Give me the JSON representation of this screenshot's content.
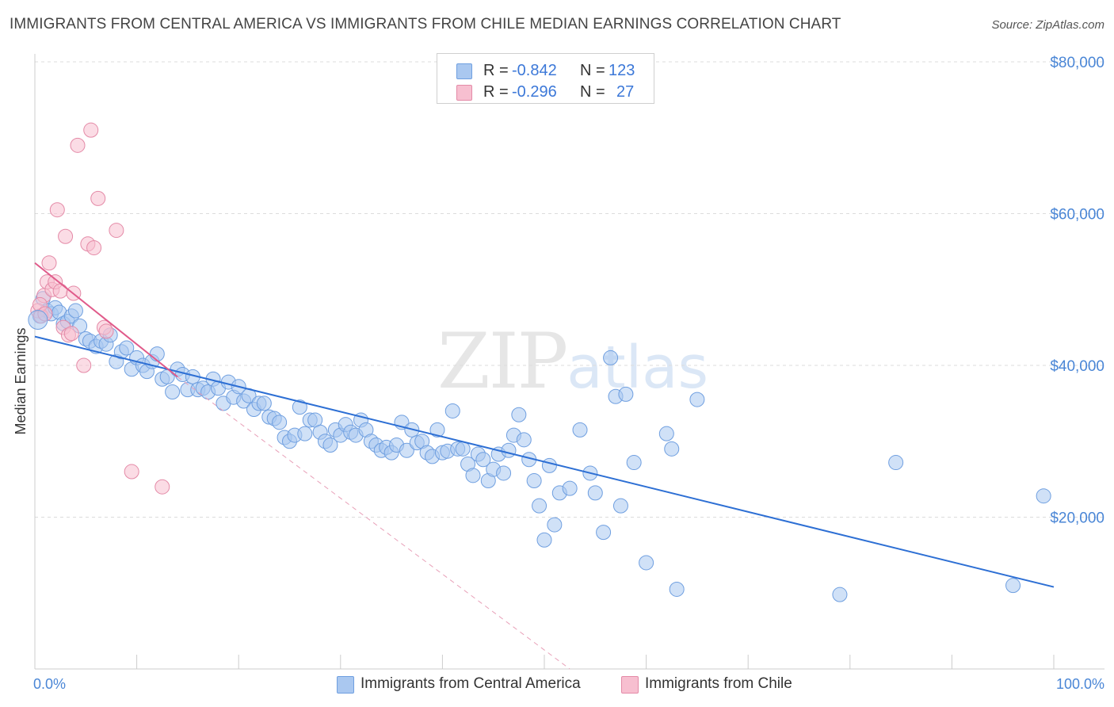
{
  "title": "IMMIGRANTS FROM CENTRAL AMERICA VS IMMIGRANTS FROM CHILE MEDIAN EARNINGS CORRELATION CHART",
  "source": "Source: ZipAtlas.com",
  "watermark": {
    "zip": "ZIP",
    "atlas": "atlas"
  },
  "legend_top": [
    {
      "r_label": "R =",
      "r_value": "-0.842",
      "n_label": "N =",
      "n_value": "123",
      "color": "#aac8f0",
      "border": "#6f9fe0"
    },
    {
      "r_label": "R =",
      "r_value": "-0.296",
      "n_label": "N =",
      "n_value": "27",
      "color": "#f7bfd0",
      "border": "#e48aa7"
    }
  ],
  "chart_data": {
    "type": "scatter",
    "title": "IMMIGRANTS FROM CENTRAL AMERICA VS IMMIGRANTS FROM CHILE MEDIAN EARNINGS CORRELATION CHART",
    "xlabel": "",
    "ylabel": "Median Earnings",
    "xlim": [
      0,
      100
    ],
    "ylim": [
      0,
      80000
    ],
    "x_tick_labels": [
      "0.0%",
      "100.0%"
    ],
    "y_ticks": [
      20000,
      40000,
      60000,
      80000
    ],
    "y_tick_labels": [
      "$20,000",
      "$40,000",
      "$60,000",
      "$80,000"
    ],
    "grid": "horizontal dashed",
    "legend_position": "bottom",
    "series": [
      {
        "name": "Immigrants from Central America",
        "color": "#6f9fe0",
        "fill": "#aac8f0",
        "trend": {
          "x": [
            0,
            100
          ],
          "y": [
            43800,
            10800
          ],
          "style": "solid",
          "color": "#2d6fd4"
        },
        "points": [
          [
            0.5,
            46500
          ],
          [
            0.8,
            48800
          ],
          [
            1.2,
            47200
          ],
          [
            1.6,
            46800
          ],
          [
            2.0,
            47600
          ],
          [
            2.4,
            47000
          ],
          [
            2.8,
            45500
          ],
          [
            3.2,
            45800
          ],
          [
            3.6,
            46500
          ],
          [
            4.0,
            47200
          ],
          [
            4.4,
            45200
          ],
          [
            5.0,
            43500
          ],
          [
            5.4,
            43200
          ],
          [
            6.0,
            42500
          ],
          [
            6.5,
            43200
          ],
          [
            7.0,
            42800
          ],
          [
            7.4,
            44000
          ],
          [
            8.0,
            40500
          ],
          [
            8.5,
            41800
          ],
          [
            9.0,
            42300
          ],
          [
            9.5,
            39500
          ],
          [
            10.0,
            41000
          ],
          [
            10.6,
            40000
          ],
          [
            11.0,
            39200
          ],
          [
            11.5,
            40500
          ],
          [
            12.0,
            41500
          ],
          [
            12.5,
            38200
          ],
          [
            13.0,
            38500
          ],
          [
            13.5,
            36500
          ],
          [
            14.0,
            39500
          ],
          [
            14.5,
            38800
          ],
          [
            15.0,
            36800
          ],
          [
            15.5,
            38500
          ],
          [
            16.0,
            36800
          ],
          [
            16.5,
            37000
          ],
          [
            17.0,
            36500
          ],
          [
            17.5,
            38200
          ],
          [
            18.0,
            37000
          ],
          [
            18.5,
            35000
          ],
          [
            19.0,
            37800
          ],
          [
            19.5,
            35800
          ],
          [
            20.0,
            37200
          ],
          [
            20.5,
            35300
          ],
          [
            21.0,
            36000
          ],
          [
            21.5,
            34200
          ],
          [
            22.0,
            35000
          ],
          [
            22.5,
            35000
          ],
          [
            23.0,
            33200
          ],
          [
            23.5,
            33000
          ],
          [
            24.0,
            32500
          ],
          [
            24.5,
            30500
          ],
          [
            25.0,
            30000
          ],
          [
            25.5,
            30800
          ],
          [
            26.0,
            34500
          ],
          [
            26.5,
            31000
          ],
          [
            27.0,
            32800
          ],
          [
            27.5,
            32800
          ],
          [
            28.0,
            31200
          ],
          [
            28.5,
            30000
          ],
          [
            29.0,
            29500
          ],
          [
            29.5,
            31500
          ],
          [
            30.0,
            30800
          ],
          [
            30.5,
            32200
          ],
          [
            31.0,
            31200
          ],
          [
            31.5,
            30800
          ],
          [
            32.0,
            32800
          ],
          [
            32.5,
            31500
          ],
          [
            33.0,
            30000
          ],
          [
            33.5,
            29500
          ],
          [
            34.0,
            28800
          ],
          [
            34.5,
            29200
          ],
          [
            35.0,
            28500
          ],
          [
            35.5,
            29500
          ],
          [
            36.0,
            32500
          ],
          [
            36.5,
            28800
          ],
          [
            37.0,
            31500
          ],
          [
            37.5,
            29800
          ],
          [
            38.0,
            30000
          ],
          [
            38.5,
            28500
          ],
          [
            39.0,
            28000
          ],
          [
            39.5,
            31500
          ],
          [
            40.0,
            28500
          ],
          [
            40.5,
            28700
          ],
          [
            41.0,
            34000
          ],
          [
            41.5,
            29000
          ],
          [
            42.0,
            29000
          ],
          [
            42.5,
            27000
          ],
          [
            43.0,
            25500
          ],
          [
            43.5,
            28300
          ],
          [
            44.0,
            27600
          ],
          [
            44.5,
            24800
          ],
          [
            45.0,
            26300
          ],
          [
            45.5,
            28300
          ],
          [
            46.0,
            25800
          ],
          [
            46.5,
            28800
          ],
          [
            47.0,
            30800
          ],
          [
            47.5,
            33500
          ],
          [
            48.0,
            30200
          ],
          [
            48.5,
            27600
          ],
          [
            49.0,
            24800
          ],
          [
            49.5,
            21500
          ],
          [
            50.0,
            17000
          ],
          [
            50.5,
            26800
          ],
          [
            51.0,
            19000
          ],
          [
            51.5,
            23200
          ],
          [
            52.5,
            23800
          ],
          [
            53.5,
            31500
          ],
          [
            54.5,
            25800
          ],
          [
            55.0,
            23200
          ],
          [
            55.8,
            18000
          ],
          [
            56.5,
            41000
          ],
          [
            57.0,
            35900
          ],
          [
            57.5,
            21500
          ],
          [
            58.0,
            36200
          ],
          [
            58.8,
            27200
          ],
          [
            60.0,
            14000
          ],
          [
            62.0,
            31000
          ],
          [
            62.5,
            29000
          ],
          [
            63.0,
            10500
          ],
          [
            65.0,
            35500
          ],
          [
            79.0,
            9800
          ],
          [
            84.5,
            27200
          ],
          [
            96.0,
            11000
          ],
          [
            99.0,
            22800
          ]
        ]
      },
      {
        "name": "Immigrants from Chile",
        "color": "#e48aa7",
        "fill": "#f7bfd0",
        "trend": {
          "x": [
            0,
            14
          ],
          "y": [
            53500,
            38500
          ],
          "style": "solid",
          "color": "#e05a8a",
          "extension": {
            "x": [
              14,
              52.5
            ],
            "y": [
              38500,
              0
            ],
            "style": "dashed"
          }
        },
        "points": [
          [
            0.3,
            47200
          ],
          [
            0.6,
            46500
          ],
          [
            0.9,
            49200
          ],
          [
            1.2,
            51000
          ],
          [
            1.4,
            53500
          ],
          [
            1.7,
            50000
          ],
          [
            2.0,
            51000
          ],
          [
            2.2,
            60500
          ],
          [
            2.5,
            49800
          ],
          [
            2.8,
            45000
          ],
          [
            3.0,
            57000
          ],
          [
            3.3,
            44000
          ],
          [
            3.6,
            44200
          ],
          [
            3.8,
            49500
          ],
          [
            4.2,
            69000
          ],
          [
            4.8,
            40000
          ],
          [
            5.2,
            56000
          ],
          [
            5.5,
            71000
          ],
          [
            5.8,
            55500
          ],
          [
            6.2,
            62000
          ],
          [
            6.8,
            45000
          ],
          [
            7.0,
            44500
          ],
          [
            8.0,
            57800
          ],
          [
            9.5,
            26000
          ],
          [
            12.5,
            24000
          ],
          [
            0.5,
            48000
          ],
          [
            1.0,
            46800
          ]
        ]
      }
    ]
  },
  "legend_bottom": [
    {
      "label": "Immigrants from Central America",
      "color": "#aac8f0",
      "border": "#6f9fe0"
    },
    {
      "label": "Immigrants from Chile",
      "color": "#f7bfd0",
      "border": "#e48aa7"
    }
  ]
}
